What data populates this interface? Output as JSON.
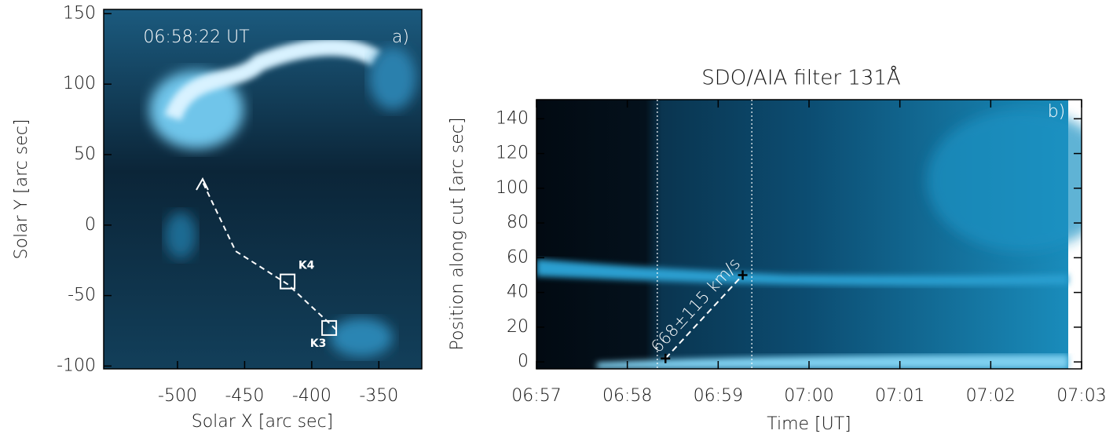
{
  "chart_data": [
    {
      "type": "image",
      "label": "a)",
      "timestamp": "06:58:22 UT",
      "xlabel": "Solar X [arc sec]",
      "ylabel": "Solar Y [arc sec]",
      "xlim": [
        -555,
        -318
      ],
      "ylim": [
        -102,
        153
      ],
      "xticks": [
        -500,
        -450,
        -400,
        -350
      ],
      "yticks": [
        -100,
        -50,
        0,
        50,
        100,
        150
      ],
      "boxes": [
        {
          "label": "K4",
          "x": -418,
          "y": -40
        },
        {
          "label": "K3",
          "x": -387,
          "y": -73
        }
      ]
    },
    {
      "type": "timeslice",
      "title": "SDO/AIA filter 131Å",
      "label": "b)",
      "xlabel": "Time [UT]",
      "ylabel": "Position along cut [arc sec]",
      "xlim": [
        0,
        6
      ],
      "ylim": [
        -4,
        151
      ],
      "xticks": [
        {
          "value": 0,
          "label": "06:57"
        },
        {
          "value": 1,
          "label": "06:58"
        },
        {
          "value": 2,
          "label": "06:59"
        },
        {
          "value": 3,
          "label": "07:00"
        },
        {
          "value": 4,
          "label": "07:01"
        },
        {
          "value": 5,
          "label": "07:02"
        },
        {
          "value": 6,
          "label": "07:03"
        }
      ],
      "yticks": [
        0,
        20,
        40,
        60,
        80,
        100,
        120,
        140
      ],
      "vlines": [
        1.33,
        2.37
      ],
      "fit": {
        "x": [
          1.42,
          2.27
        ],
        "y": [
          2,
          50
        ],
        "annotation": "668±115 km/s"
      }
    }
  ]
}
